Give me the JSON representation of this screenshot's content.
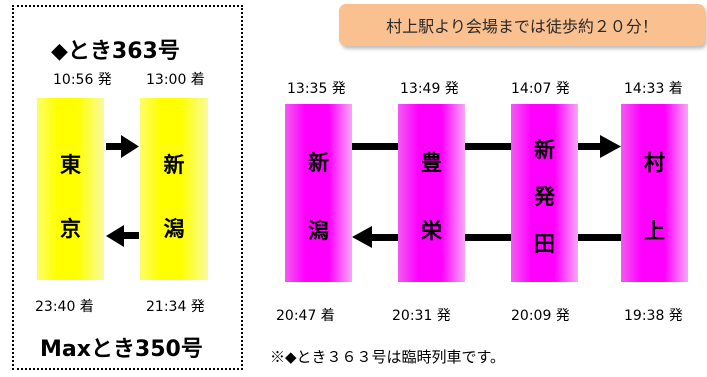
{
  "left_panel": {
    "title_top": "◆とき363号",
    "title_bottom": "Maxとき350号",
    "dep_time_top": "10:56 発",
    "arr_time_top": "13:00 着",
    "arr_time_bottom": "23:40 着",
    "dep_time_bottom": "21:34 発",
    "stations": [
      {
        "chars": [
          "東",
          "京"
        ]
      },
      {
        "chars": [
          "新",
          "潟"
        ]
      }
    ]
  },
  "banner": {
    "text": "村上駅より会場までは徒歩約２０分！"
  },
  "right_panel": {
    "top_times": [
      "13:35 発",
      "13:49 発",
      "14:07 発",
      "14:33 着"
    ],
    "bottom_times": [
      "20:47 着",
      "20:31 発",
      "20:09 発",
      "19:38 発"
    ],
    "stations": [
      {
        "chars": [
          "新",
          "潟"
        ]
      },
      {
        "chars": [
          "豊",
          "栄"
        ]
      },
      {
        "chars": [
          "新",
          "発",
          "田"
        ]
      },
      {
        "chars": [
          "村",
          "上"
        ]
      }
    ]
  },
  "note": {
    "text": "※◆とき３６３号は臨時列車です。"
  },
  "colors": {
    "left_pillars": "#ffff00",
    "right_pillars": "#ff00ff",
    "banner": "#fac090",
    "arrows": "#000000"
  }
}
